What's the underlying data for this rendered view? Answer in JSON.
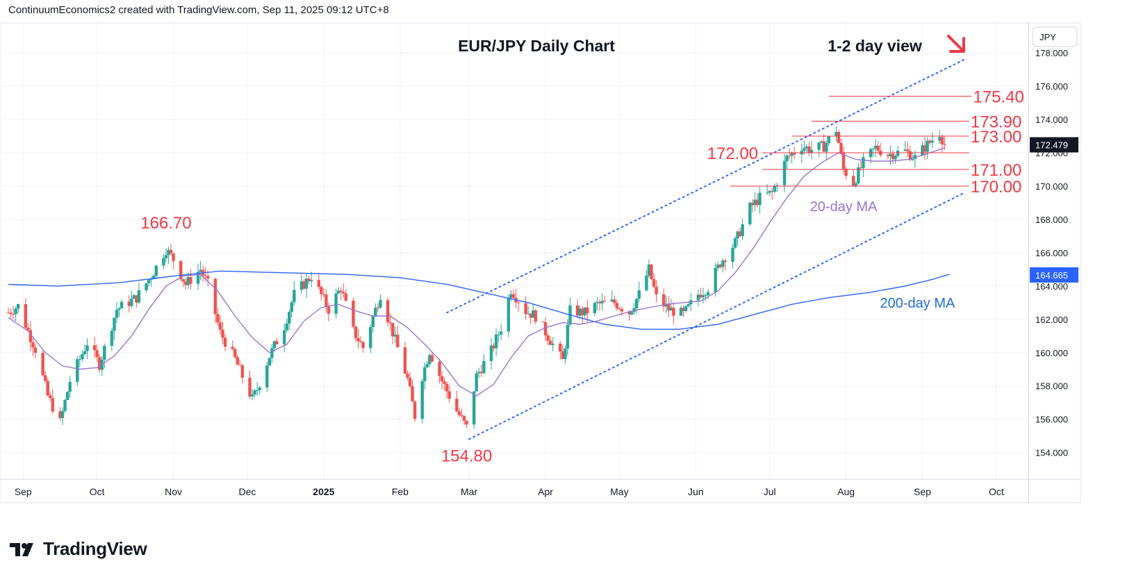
{
  "header": {
    "attribution": "ContinuumEconomics2 created with TradingView.com, Sep 11, 2025 09:12 UTC+8"
  },
  "footer": {
    "brand": "TradingView",
    "logo_icon": "tradingview-logo-icon"
  },
  "chart_data": {
    "type": "candlestick",
    "title": "EUR/JPY Daily Chart",
    "subtitle": "1-2 day view",
    "view_icon": "down-right-arrow-icon",
    "currency_label": "JPY",
    "colors": {
      "up": "#26a69a",
      "down": "#ef5350",
      "ma20": "#9575cd",
      "ma200": "#2962ff",
      "annotation": "#f23645",
      "grid": "#e0e3eb",
      "channel": "#2962ff",
      "ma200_label": "#1e6ed6"
    },
    "ylim": [
      152.4,
      179.8
    ],
    "y_ticks": [
      "154.000",
      "156.000",
      "158.000",
      "160.000",
      "162.000",
      "164.000",
      "166.000",
      "168.000",
      "170.000",
      "172.000",
      "174.000",
      "176.000",
      "178.000"
    ],
    "y_tick_values": [
      154,
      156,
      158,
      160,
      162,
      164,
      166,
      168,
      170,
      172,
      174,
      176,
      178
    ],
    "x_start": "2024-08-26",
    "x_end": "2025-10-14",
    "x_ticks": [
      {
        "label": "Sep",
        "date": "2024-09-01",
        "bold": false
      },
      {
        "label": "Oct",
        "date": "2024-10-01",
        "bold": false
      },
      {
        "label": "Nov",
        "date": "2024-11-01",
        "bold": false
      },
      {
        "label": "Dec",
        "date": "2024-12-01",
        "bold": false
      },
      {
        "label": "2025",
        "date": "2025-01-01",
        "bold": true
      },
      {
        "label": "Feb",
        "date": "2025-02-01",
        "bold": false
      },
      {
        "label": "Mar",
        "date": "2025-03-01",
        "bold": false
      },
      {
        "label": "Apr",
        "date": "2025-04-01",
        "bold": false
      },
      {
        "label": "May",
        "date": "2025-05-01",
        "bold": false
      },
      {
        "label": "Jun",
        "date": "2025-06-01",
        "bold": false
      },
      {
        "label": "Jul",
        "date": "2025-07-01",
        "bold": false
      },
      {
        "label": "Aug",
        "date": "2025-08-01",
        "bold": false
      },
      {
        "label": "Sep",
        "date": "2025-09-01",
        "bold": false
      },
      {
        "label": "Oct",
        "date": "2025-10-01",
        "bold": false
      }
    ],
    "price_path": [
      [
        "2024-08-26",
        162.4
      ],
      [
        "2024-08-30",
        162.8
      ],
      [
        "2024-09-06",
        160.2
      ],
      [
        "2024-09-11",
        157.4
      ],
      [
        "2024-09-16",
        155.8
      ],
      [
        "2024-09-20",
        158.3
      ],
      [
        "2024-09-27",
        160.6
      ],
      [
        "2024-10-02",
        159.3
      ],
      [
        "2024-10-09",
        162.6
      ],
      [
        "2024-10-17",
        163.3
      ],
      [
        "2024-10-23",
        164.6
      ],
      [
        "2024-10-29",
        166.2
      ],
      [
        "2024-11-01",
        165.6
      ],
      [
        "2024-11-06",
        164.1
      ],
      [
        "2024-11-12",
        165.0
      ],
      [
        "2024-11-15",
        164.1
      ],
      [
        "2024-11-20",
        161.2
      ],
      [
        "2024-11-26",
        159.6
      ],
      [
        "2024-12-03",
        157.2
      ],
      [
        "2024-12-05",
        157.8
      ],
      [
        "2024-12-10",
        159.8
      ],
      [
        "2024-12-16",
        161.6
      ],
      [
        "2024-12-20",
        163.5
      ],
      [
        "2024-12-27",
        164.6
      ],
      [
        "2025-01-03",
        162.6
      ],
      [
        "2025-01-08",
        163.9
      ],
      [
        "2025-01-13",
        161.3
      ],
      [
        "2025-01-17",
        160.3
      ],
      [
        "2025-01-24",
        163.5
      ],
      [
        "2025-01-29",
        161.2
      ],
      [
        "2025-02-04",
        158.4
      ],
      [
        "2025-02-07",
        156.2
      ],
      [
        "2025-02-10",
        158.6
      ],
      [
        "2025-02-13",
        160.1
      ],
      [
        "2025-02-18",
        158.3
      ],
      [
        "2025-02-24",
        156.5
      ],
      [
        "2025-02-28",
        155.5
      ],
      [
        "2025-03-04",
        158.6
      ],
      [
        "2025-03-10",
        160.1
      ],
      [
        "2025-03-14",
        161.5
      ],
      [
        "2025-03-18",
        163.8
      ],
      [
        "2025-03-24",
        162.5
      ],
      [
        "2025-03-28",
        162.2
      ],
      [
        "2025-04-04",
        160.5
      ],
      [
        "2025-04-08",
        159.5
      ],
      [
        "2025-04-11",
        162.5
      ],
      [
        "2025-04-17",
        162.4
      ],
      [
        "2025-04-22",
        162.9
      ],
      [
        "2025-04-29",
        163.0
      ],
      [
        "2025-05-05",
        162.4
      ],
      [
        "2025-05-09",
        163.5
      ],
      [
        "2025-05-13",
        165.0
      ],
      [
        "2025-05-16",
        163.3
      ],
      [
        "2025-05-21",
        162.6
      ],
      [
        "2025-05-27",
        162.3
      ],
      [
        "2025-06-02",
        163.5
      ],
      [
        "2025-06-06",
        163.9
      ],
      [
        "2025-06-11",
        165.4
      ],
      [
        "2025-06-17",
        166.6
      ],
      [
        "2025-06-23",
        168.7
      ],
      [
        "2025-06-27",
        169.3
      ],
      [
        "2025-07-02",
        169.6
      ],
      [
        "2025-07-08",
        171.7
      ],
      [
        "2025-07-14",
        172.4
      ],
      [
        "2025-07-18",
        172.2
      ],
      [
        "2025-07-23",
        172.4
      ],
      [
        "2025-07-28",
        173.4
      ],
      [
        "2025-07-31",
        171.0
      ],
      [
        "2025-08-04",
        170.2
      ],
      [
        "2025-08-08",
        171.4
      ],
      [
        "2025-08-13",
        172.3
      ],
      [
        "2025-08-18",
        171.9
      ],
      [
        "2025-08-25",
        172.1
      ],
      [
        "2025-08-29",
        171.7
      ],
      [
        "2025-09-03",
        172.5
      ],
      [
        "2025-09-08",
        173.2
      ],
      [
        "2025-09-10",
        172.5
      ]
    ],
    "ma20_path": [
      [
        "2024-08-26",
        162.1
      ],
      [
        "2024-09-03",
        161.3
      ],
      [
        "2024-09-10",
        160.0
      ],
      [
        "2024-09-17",
        159.2
      ],
      [
        "2024-09-24",
        159.0
      ],
      [
        "2024-10-01",
        159.1
      ],
      [
        "2024-10-08",
        159.8
      ],
      [
        "2024-10-15",
        161.0
      ],
      [
        "2024-10-22",
        162.6
      ],
      [
        "2024-10-29",
        164.0
      ],
      [
        "2024-11-05",
        164.6
      ],
      [
        "2024-11-12",
        164.7
      ],
      [
        "2024-11-19",
        163.7
      ],
      [
        "2024-11-26",
        162.2
      ],
      [
        "2024-12-03",
        160.9
      ],
      [
        "2024-12-10",
        160.0
      ],
      [
        "2024-12-17",
        160.5
      ],
      [
        "2024-12-24",
        161.9
      ],
      [
        "2024-12-31",
        162.7
      ],
      [
        "2025-01-07",
        162.9
      ],
      [
        "2025-01-14",
        162.5
      ],
      [
        "2025-01-21",
        162.2
      ],
      [
        "2025-01-28",
        162.2
      ],
      [
        "2025-02-04",
        161.5
      ],
      [
        "2025-02-11",
        160.5
      ],
      [
        "2025-02-18",
        159.4
      ],
      [
        "2025-02-25",
        158.0
      ],
      [
        "2025-03-04",
        157.4
      ],
      [
        "2025-03-11",
        158.1
      ],
      [
        "2025-03-18",
        159.7
      ],
      [
        "2025-03-25",
        161.0
      ],
      [
        "2025-04-01",
        161.5
      ],
      [
        "2025-04-08",
        161.8
      ],
      [
        "2025-04-15",
        161.7
      ],
      [
        "2025-04-22",
        161.9
      ],
      [
        "2025-04-29",
        162.2
      ],
      [
        "2025-05-06",
        162.5
      ],
      [
        "2025-05-13",
        162.7
      ],
      [
        "2025-05-20",
        162.9
      ],
      [
        "2025-05-27",
        163.0
      ],
      [
        "2025-06-03",
        163.1
      ],
      [
        "2025-06-10",
        163.7
      ],
      [
        "2025-06-17",
        164.8
      ],
      [
        "2025-06-24",
        166.2
      ],
      [
        "2025-07-01",
        167.8
      ],
      [
        "2025-07-08",
        169.3
      ],
      [
        "2025-07-15",
        170.6
      ],
      [
        "2025-07-22",
        171.4
      ],
      [
        "2025-07-29",
        172.0
      ],
      [
        "2025-08-05",
        171.6
      ],
      [
        "2025-08-12",
        171.5
      ],
      [
        "2025-08-19",
        171.5
      ],
      [
        "2025-08-26",
        171.6
      ],
      [
        "2025-09-02",
        171.9
      ],
      [
        "2025-09-10",
        172.3
      ]
    ],
    "ma200_path": [
      [
        "2024-08-26",
        164.1
      ],
      [
        "2024-09-15",
        164.0
      ],
      [
        "2024-10-10",
        164.2
      ],
      [
        "2024-11-01",
        164.6
      ],
      [
        "2024-11-20",
        164.9
      ],
      [
        "2024-12-15",
        164.8
      ],
      [
        "2025-01-10",
        164.7
      ],
      [
        "2025-02-01",
        164.5
      ],
      [
        "2025-02-20",
        164.1
      ],
      [
        "2025-03-10",
        163.5
      ],
      [
        "2025-03-25",
        163.0
      ],
      [
        "2025-04-10",
        162.3
      ],
      [
        "2025-04-25",
        161.7
      ],
      [
        "2025-05-10",
        161.4
      ],
      [
        "2025-05-25",
        161.4
      ],
      [
        "2025-06-10",
        161.7
      ],
      [
        "2025-06-25",
        162.3
      ],
      [
        "2025-07-10",
        162.9
      ],
      [
        "2025-07-25",
        163.3
      ],
      [
        "2025-08-10",
        163.6
      ],
      [
        "2025-08-25",
        164.0
      ],
      [
        "2025-09-05",
        164.4
      ],
      [
        "2025-09-12",
        164.7
      ]
    ],
    "channel_upper": [
      [
        "2025-02-20",
        162.4
      ],
      [
        "2025-09-18",
        177.6
      ]
    ],
    "channel_lower": [
      [
        "2025-03-01",
        154.8
      ],
      [
        "2025-09-18",
        169.6
      ]
    ],
    "horizontal_levels": [
      {
        "label": "175.40",
        "value": 175.4,
        "from": "2025-07-25",
        "to": "2025-09-21",
        "label_side": "right"
      },
      {
        "label": "173.90",
        "value": 173.9,
        "from": "2025-07-18",
        "to": "2025-09-20",
        "label_side": "right"
      },
      {
        "label": "173.00",
        "value": 173.0,
        "from": "2025-07-10",
        "to": "2025-09-20",
        "label_side": "right"
      },
      {
        "label": "172.00",
        "value": 172.0,
        "from": "2025-06-28",
        "to": "2025-09-20",
        "label_side": "left"
      },
      {
        "label": "171.00",
        "value": 171.0,
        "from": "2025-06-28",
        "to": "2025-09-20",
        "label_side": "right"
      },
      {
        "label": "170.00",
        "value": 170.0,
        "from": "2025-06-15",
        "to": "2025-09-20",
        "label_side": "right"
      }
    ],
    "point_labels": [
      {
        "label": "166.70",
        "date": "2024-10-29",
        "value": 166.7
      },
      {
        "label": "154.80",
        "date": "2025-02-28",
        "value": 154.8
      }
    ],
    "series_labels": [
      {
        "label": "20-day MA",
        "date": "2025-07-31",
        "value": 168.5,
        "color_key": "ma20"
      },
      {
        "label": "200-day MA",
        "date": "2025-08-30",
        "value": 162.7,
        "color_key": "ma200_label"
      }
    ],
    "price_badges": [
      {
        "label": "172.479",
        "value": 172.479,
        "bg": "#131722"
      },
      {
        "label": "164.665",
        "value": 164.665,
        "bg": "#2962ff"
      }
    ]
  }
}
